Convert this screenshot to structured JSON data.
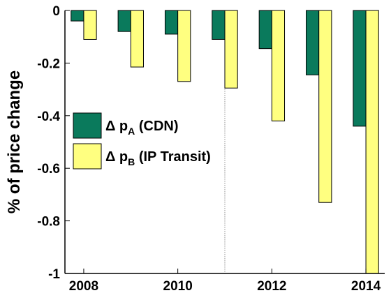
{
  "chart_data": {
    "type": "bar",
    "title": "",
    "xlabel": "",
    "ylabel": "% of price change",
    "ylim": [
      -1,
      0
    ],
    "xlim": [
      2007.6,
      2014.4
    ],
    "x": [
      2008,
      2009,
      2010,
      2011,
      2012,
      2013,
      2014
    ],
    "x_ticks": [
      2008,
      2010,
      2012,
      2014
    ],
    "y_ticks": [
      0,
      -0.2,
      -0.4,
      -0.6,
      -0.8,
      -1
    ],
    "y_tick_labels": [
      "0",
      "-0.2",
      "-0.4",
      "-0.6",
      "-0.8",
      "-1"
    ],
    "divider_x": 2011,
    "series": [
      {
        "name": "Δ p_A (CDN)",
        "legend_prefix": "Δ p",
        "legend_sub": "A",
        "legend_suffix": " (CDN)",
        "color": "#0a7a5c",
        "values": [
          -0.04,
          -0.08,
          -0.09,
          -0.11,
          -0.145,
          -0.245,
          -0.44
        ]
      },
      {
        "name": "Δ p_B (IP Transit)",
        "legend_prefix": "Δ p",
        "legend_sub": "B",
        "legend_suffix": " (IP Transit)",
        "color": "#ffff80",
        "values": [
          -0.11,
          -0.215,
          -0.27,
          -0.295,
          -0.42,
          -0.73,
          -1.0
        ]
      }
    ],
    "legend_position": "center-left",
    "grid": false
  }
}
